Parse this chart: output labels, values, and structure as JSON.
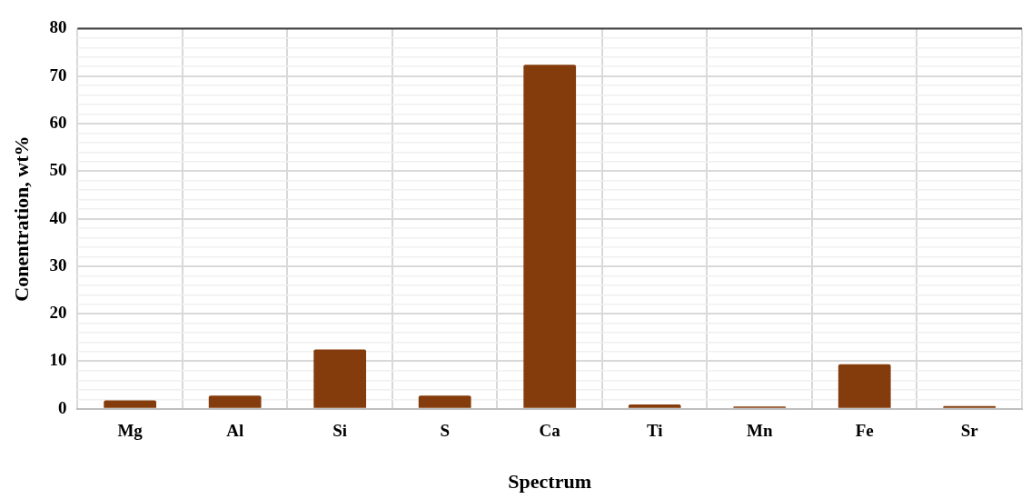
{
  "chart_data": {
    "type": "bar",
    "xlabel": "Spectrum",
    "ylabel": "Conentration, wt%",
    "categories": [
      "Mg",
      "Al",
      "Si",
      "S",
      "Ca",
      "Ti",
      "Mn",
      "Fe",
      "Sr"
    ],
    "values": [
      1.8,
      2.8,
      12.5,
      2.8,
      72.4,
      0.9,
      0.5,
      9.4,
      0.6
    ],
    "color": "#843c0c",
    "ylim": [
      0,
      80
    ],
    "yticks": [
      0,
      {
        "value": 2,
        "label": null
      },
      {
        "value": 4,
        "label": null
      },
      {
        "value": 6,
        "label": null
      },
      {
        "value": 8,
        "label": null
      },
      10,
      {
        "value": 12,
        "label": null
      },
      {
        "value": 14,
        "label": null
      },
      {
        "value": 16,
        "label": null
      },
      {
        "value": 18,
        "label": null
      },
      20,
      {
        "value": 22,
        "label": null
      },
      {
        "value": 24,
        "label": null
      },
      {
        "value": 26,
        "label": null
      },
      {
        "value": 28,
        "label": null
      },
      30,
      {
        "value": 32,
        "label": null
      },
      {
        "value": 34,
        "label": null
      },
      {
        "value": 36,
        "label": null
      },
      {
        "value": 38,
        "label": null
      },
      40,
      {
        "value": 42,
        "label": null
      },
      {
        "value": 44,
        "label": null
      },
      {
        "value": 46,
        "label": null
      },
      {
        "value": 48,
        "label": null
      },
      50,
      {
        "value": 52,
        "label": null
      },
      {
        "value": 54,
        "label": null
      },
      {
        "value": 56,
        "label": null
      },
      {
        "value": 58,
        "label": null
      },
      60,
      {
        "value": 62,
        "label": null
      },
      {
        "value": 64,
        "label": null
      },
      {
        "value": 66,
        "label": null
      },
      {
        "value": 68,
        "label": null
      },
      70,
      {
        "value": 72,
        "label": null
      },
      {
        "value": 74,
        "label": null
      },
      {
        "value": 76,
        "label": null
      },
      {
        "value": 78,
        "label": null
      },
      80
    ],
    "grid": true,
    "legend": false
  }
}
